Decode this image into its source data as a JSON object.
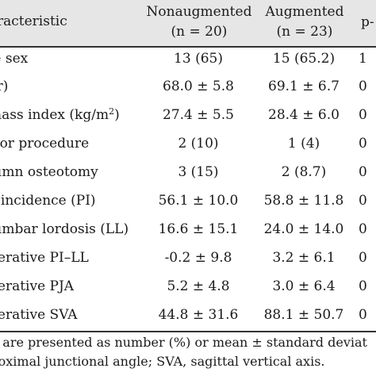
{
  "header": {
    "characteristic": "racteristic",
    "col1_line1": "Nonaugmented",
    "col1_line2": "(n = 20)",
    "col2_line1": "Augmented",
    "col2_line2": "(n = 23)",
    "col3": "p-"
  },
  "rows": [
    {
      "label": "le sex",
      "non": "13 (65)",
      "aug": "15 (65.2)",
      "p": "1"
    },
    {
      "label": "yr)",
      "non": "68.0 ± 5.8",
      "aug": "69.1 ± 6.7",
      "p": "0"
    },
    {
      "label": " mass index (kg/m",
      "label_sup": "2",
      "label_end": ")",
      "non": "27.4 ± 5.5",
      "aug": "28.4 ± 6.0",
      "p": "0"
    },
    {
      "label": "rior procedure",
      "non": "2 (10)",
      "aug": "1 (4)",
      "p": "0"
    },
    {
      "label": "lumn osteotomy",
      "non": "3 (15)",
      "aug": "2 (8.7)",
      "p": "0"
    },
    {
      "label": "c incidence (PI)",
      "non": "56.1 ± 10.0",
      "aug": "58.8 ± 11.8",
      "p": "0"
    },
    {
      "label": " lumbar lordosis (LL)",
      "non": "16.6 ± 15.1",
      "aug": "24.0 ± 14.0",
      "p": "0"
    },
    {
      "label": "perative PI–LL",
      "non": "-0.2 ± 9.8",
      "aug": "3.2 ± 6.1",
      "p": "0"
    },
    {
      "label": "perative PJA",
      "non": "5.2 ± 4.8",
      "aug": "3.0 ± 6.4",
      "p": "0"
    },
    {
      "label": "perative SVA",
      "non": "44.8 ± 31.6",
      "aug": "88.1 ± 50.7",
      "p": "0"
    }
  ],
  "footnote": {
    "line1": "s are presented as number (%) or mean ± standard deviat",
    "line2": "roximal junctional angle; SVA, sagittal vertical axis."
  },
  "colors": {
    "header_bg": "#e6e6e6",
    "rule": "#333333",
    "text": "#1a1a1a"
  }
}
